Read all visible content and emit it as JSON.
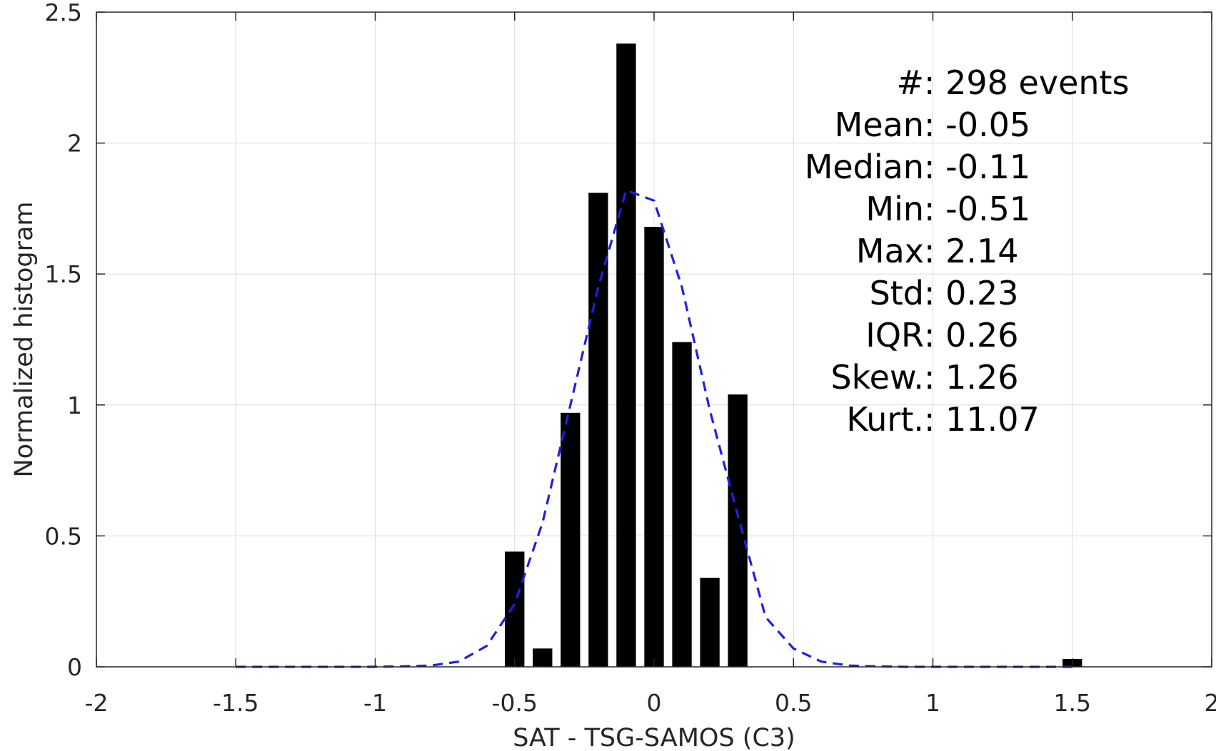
{
  "chart_data": {
    "type": "bar",
    "title": "",
    "xlabel": "SAT - TSG-SAMOS (C3)",
    "ylabel": "Normalized histogram",
    "xlim": [
      -2,
      2
    ],
    "ylim": [
      0,
      2.5
    ],
    "grid": true,
    "x_ticks": [
      -2,
      -1.5,
      -1,
      -0.5,
      0,
      0.5,
      1,
      1.5,
      2
    ],
    "x_tick_labels": [
      "-2",
      "-1.5",
      "-1",
      "-0.5",
      "0",
      "0.5",
      "1",
      "1.5",
      "2"
    ],
    "y_ticks": [
      0,
      0.5,
      1,
      1.5,
      2,
      2.5
    ],
    "y_tick_labels": [
      "0",
      "0.5",
      "1",
      "1.5",
      "2",
      "2.5"
    ],
    "bar_width": 0.07,
    "bar_color": "#000000",
    "series": [
      {
        "type": "bar",
        "x": [
          -0.5,
          -0.4,
          -0.3,
          -0.2,
          -0.1,
          0,
          0.1,
          0.2,
          0.3,
          1.5
        ],
        "values": [
          0.44,
          0.07,
          0.97,
          1.81,
          2.38,
          1.68,
          1.24,
          0.34,
          1.04,
          0.03
        ]
      },
      {
        "type": "line",
        "style": "dashed",
        "color": "#1f1fe6",
        "x": [
          -1.5,
          -1.4,
          -1.3,
          -1.2,
          -1.1,
          -1.0,
          -0.9,
          -0.8,
          -0.7,
          -0.6,
          -0.5,
          -0.4,
          -0.3,
          -0.2,
          -0.1,
          0,
          0.1,
          0.2,
          0.3,
          0.4,
          0.5,
          0.6,
          0.7,
          0.8,
          0.9,
          1.0,
          1.1,
          1.2,
          1.3,
          1.4,
          1.5
        ],
        "values": [
          0,
          0,
          0,
          0,
          0,
          0,
          0.002,
          0.005,
          0.02,
          0.08,
          0.24,
          0.55,
          1.0,
          1.45,
          1.82,
          1.78,
          1.45,
          0.98,
          0.58,
          0.19,
          0.07,
          0.02,
          0.005,
          0.002,
          0,
          0,
          0,
          0,
          0,
          0,
          0
        ]
      }
    ],
    "annotation_position": "top-right",
    "annotations": [
      {
        "label": "#  ",
        "sep": ": ",
        "value": "298 events"
      },
      {
        "label": "Mean ",
        "sep": ": ",
        "value": "-0.05"
      },
      {
        "label": "Median ",
        "sep": ": ",
        "value": "-0.11"
      },
      {
        "label": "Min ",
        "sep": ": ",
        "value": "-0.51"
      },
      {
        "label": "Max ",
        "sep": ": ",
        "value": "2.14"
      },
      {
        "label": "Std ",
        "sep": ": ",
        "value": "0.23"
      },
      {
        "label": "IQR ",
        "sep": ": ",
        "value": "0.26"
      },
      {
        "label": "Skew. ",
        "sep": ": ",
        "value": "1.26"
      },
      {
        "label": "Kurt. ",
        "sep": ": ",
        "value": "11.07"
      }
    ]
  }
}
